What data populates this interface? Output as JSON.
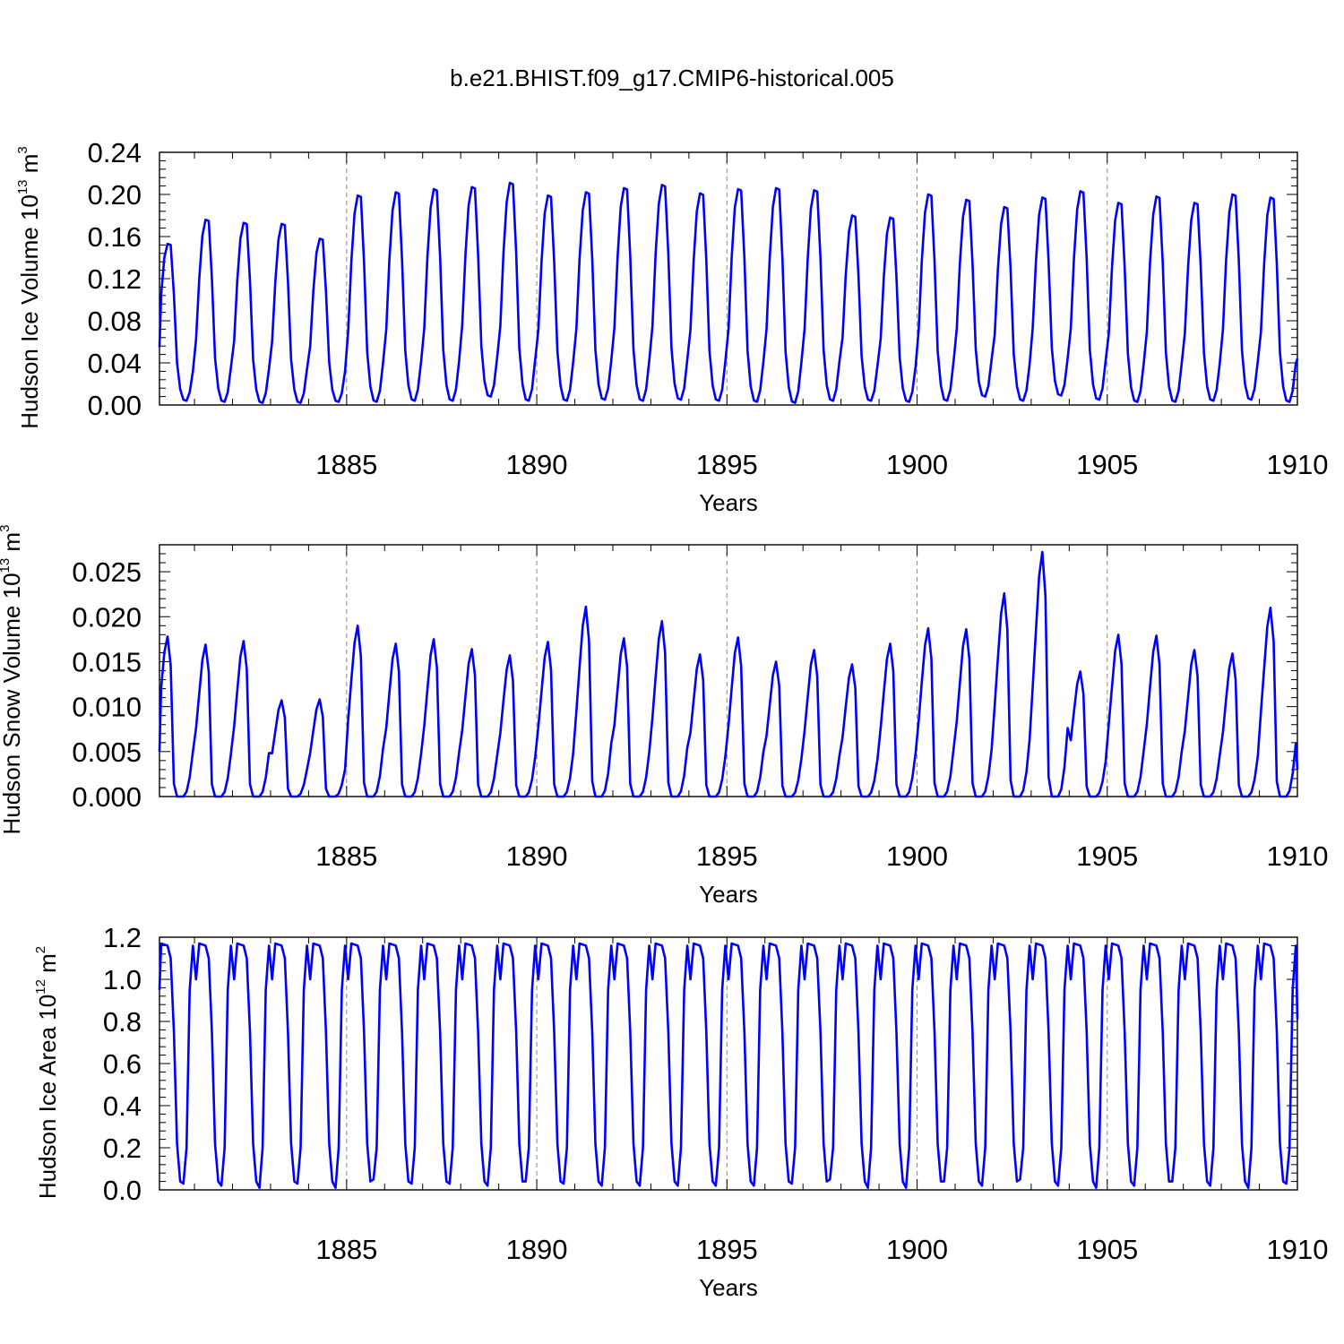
{
  "figure": {
    "title": "b.e21.BHIST.f09_g17.CMIP6-historical.005"
  },
  "chart_data": [
    {
      "type": "line",
      "title": "b.e21.BHIST.f09_g17.CMIP6-historical.005",
      "xlabel": "Years",
      "ylabel": "Hudson Ice Volume 10",
      "ylabel_exponent": "13",
      "ylabel_unit": "m",
      "ylabel_unit_power": "3",
      "xlim": [
        1880.08,
        1910.0
      ],
      "ylim": [
        0.0,
        0.24
      ],
      "xticks": [
        1885,
        1890,
        1895,
        1900,
        1905,
        1910
      ],
      "xtick_labels": [
        "1885",
        "1890",
        "1895",
        "1900",
        "1905",
        "1910"
      ],
      "yticks": [
        0.0,
        0.04,
        0.08,
        0.12,
        0.16,
        0.2,
        0.24
      ],
      "ytick_labels": [
        "0.00",
        "0.04",
        "0.08",
        "0.12",
        "0.16",
        "0.20",
        "0.24"
      ],
      "grid": "dashed vertical lines at 5-year ticks",
      "line_color": "#0000ff",
      "series": [
        {
          "name": "Hudson Ice Volume",
          "start_year": 1880.0417,
          "step_years": 0.0833333,
          "annual_cycle_shape": [
            0.055,
            0.105,
            0.14,
            0.153,
            0.152,
            0.105,
            0.04,
            0.015,
            0.005,
            0.004,
            0.012,
            0.032
          ],
          "annual_max": [
            0.153,
            0.176,
            0.173,
            0.172,
            0.158,
            0.199,
            0.202,
            0.205,
            0.207,
            0.211,
            0.199,
            0.202,
            0.206,
            0.209,
            0.201,
            0.205,
            0.206,
            0.204,
            0.18,
            0.178,
            0.2,
            0.195,
            0.188,
            0.197,
            0.203,
            0.192,
            0.198,
            0.192,
            0.2,
            0.197
          ],
          "annual_min": [
            0.004,
            0.003,
            0.002,
            0.002,
            0.003,
            0.003,
            0.004,
            0.004,
            0.008,
            0.004,
            0.004,
            0.005,
            0.004,
            0.005,
            0.004,
            0.003,
            0.002,
            0.004,
            0.004,
            0.003,
            0.004,
            0.008,
            0.004,
            0.009,
            0.005,
            0.003,
            0.003,
            0.004,
            0.005,
            0.003
          ],
          "final_value": 0.044
        }
      ]
    },
    {
      "type": "line",
      "xlabel": "Years",
      "ylabel": "Hudson Snow Volume 10",
      "ylabel_exponent": "13",
      "ylabel_unit": "m",
      "ylabel_unit_power": "3",
      "xlim": [
        1880.08,
        1910.0
      ],
      "ylim": [
        0.0,
        0.028
      ],
      "xticks": [
        1885,
        1890,
        1895,
        1900,
        1905,
        1910
      ],
      "xtick_labels": [
        "1885",
        "1890",
        "1895",
        "1900",
        "1905",
        "1910"
      ],
      "yticks": [
        0.0,
        0.005,
        0.01,
        0.015,
        0.02,
        0.025
      ],
      "ytick_labels": [
        "0.000",
        "0.005",
        "0.010",
        "0.015",
        "0.020",
        "0.025"
      ],
      "grid": "dashed vertical lines at 5-year ticks",
      "line_color": "#0000ff",
      "series": [
        {
          "name": "Hudson Snow Volume",
          "start_year": 1880.0417,
          "step_years": 0.0833333,
          "annual_peak": [
            0.0178,
            0.0169,
            0.0173,
            0.0107,
            0.0108,
            0.019,
            0.017,
            0.0175,
            0.0164,
            0.0157,
            0.0172,
            0.0211,
            0.0176,
            0.0195,
            0.0158,
            0.0177,
            0.015,
            0.0163,
            0.0147,
            0.017,
            0.0187,
            0.0186,
            0.0226,
            0.0272,
            0.0139,
            0.018,
            0.0179,
            0.0163,
            0.0159,
            0.021
          ],
          "annual_rise_shape": [
            0.0,
            0.0,
            0.0,
            0.03,
            0.12,
            0.28,
            0.48,
            0.68,
            0.9,
            1.0,
            0.82,
            0.08
          ],
          "first_value": 0.005,
          "final_value": 0.003
        }
      ]
    },
    {
      "type": "line",
      "xlabel": "Years",
      "ylabel": "Hudson Ice Area 10",
      "ylabel_exponent": "12",
      "ylabel_unit": "m",
      "ylabel_unit_power": "2",
      "xlim": [
        1880.08,
        1910.0
      ],
      "ylim": [
        0.0,
        1.2
      ],
      "xticks": [
        1885,
        1890,
        1895,
        1900,
        1905,
        1910
      ],
      "xtick_labels": [
        "1885",
        "1890",
        "1895",
        "1900",
        "1905",
        "1910"
      ],
      "yticks": [
        0.0,
        0.2,
        0.4,
        0.6,
        0.8,
        1.0,
        1.2
      ],
      "ytick_labels": [
        "0.0",
        "0.2",
        "0.4",
        "0.6",
        "0.8",
        "1.0",
        "1.2"
      ],
      "grid": "dashed vertical lines at 5-year ticks",
      "line_color": "#0000ff",
      "series": [
        {
          "name": "Hudson Ice Area",
          "start_year": 1880.0417,
          "step_years": 0.0833333,
          "annual_cycle_shape": [
            1.0,
            1.17,
            1.165,
            1.16,
            1.1,
            0.75,
            0.22,
            0.04,
            0.02,
            0.2,
            0.95,
            1.16
          ],
          "annual_min": [
            0.03,
            0.02,
            0.01,
            0.03,
            0.01,
            0.05,
            0.03,
            0.03,
            0.02,
            0.04,
            0.03,
            0.02,
            0.02,
            0.02,
            0.02,
            0.02,
            0.03,
            0.05,
            0.01,
            0.01,
            0.04,
            0.02,
            0.05,
            0.02,
            0.01,
            0.02,
            0.04,
            0.02,
            0.01,
            0.03
          ],
          "first_value": 0.95,
          "final_value": 0.81
        }
      ]
    }
  ]
}
